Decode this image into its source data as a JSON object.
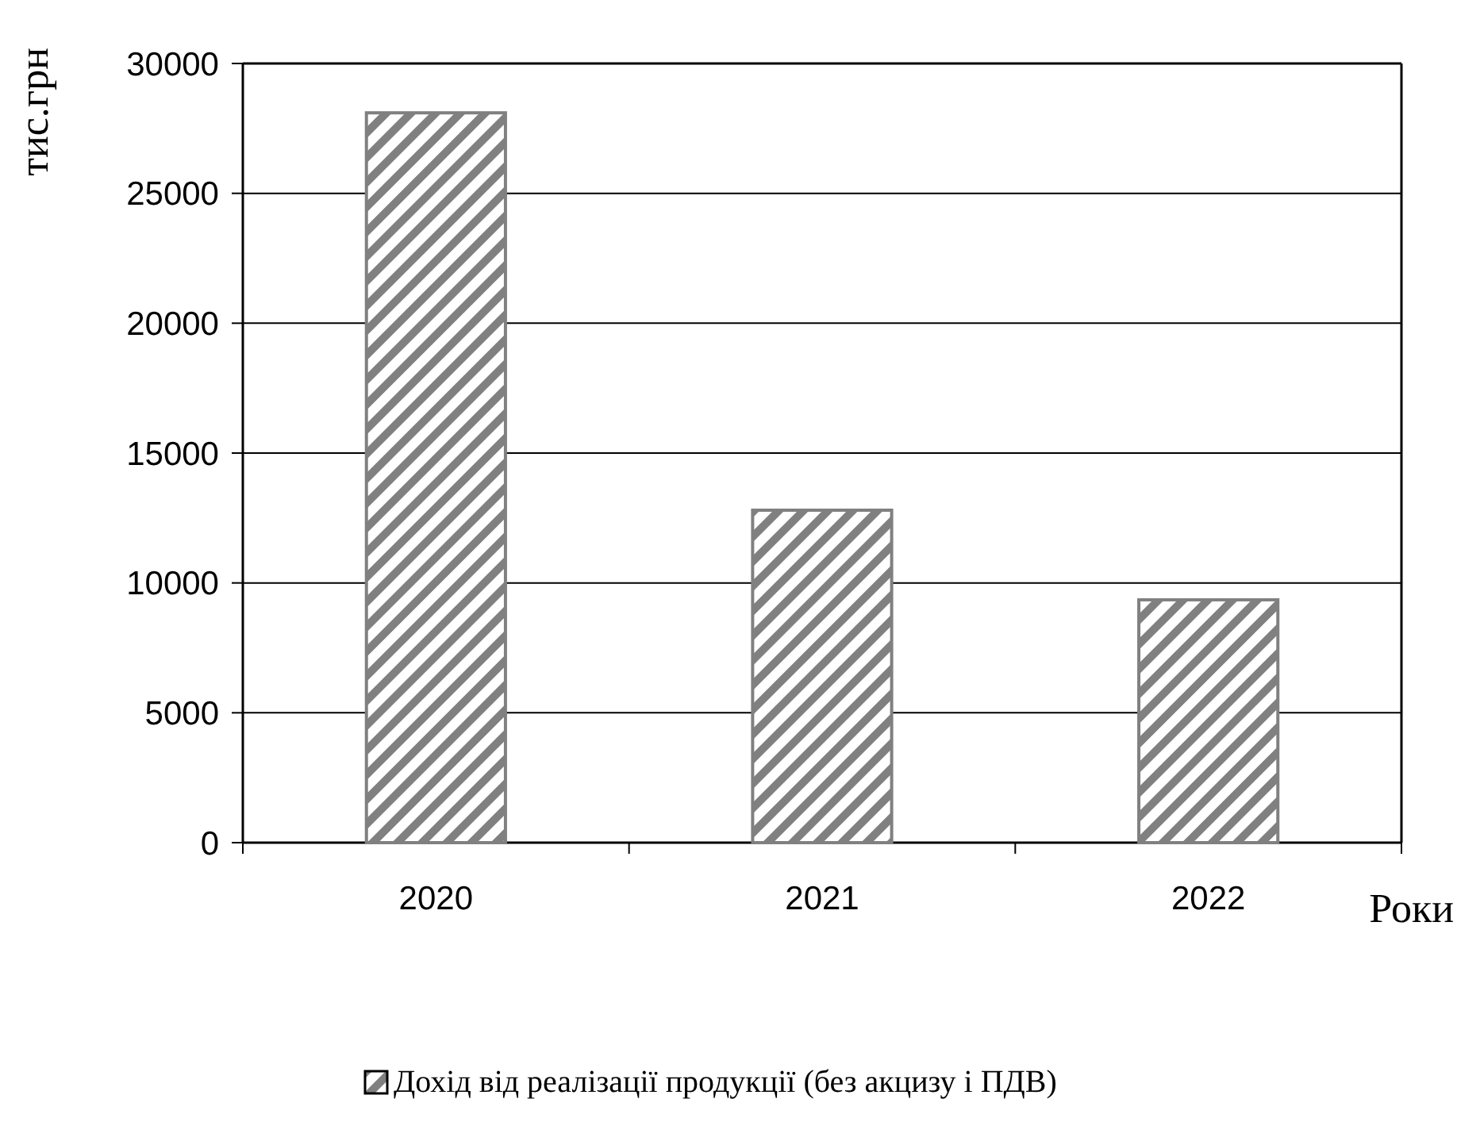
{
  "chart_data": {
    "type": "bar",
    "ylabel": "тис.грн",
    "xlabel": "Роки",
    "categories": [
      "2020",
      "2021",
      "2022"
    ],
    "series": [
      {
        "name": "Дохід від реалізації продукції (без акцизу і ПДВ)",
        "color": "#808080",
        "values": [
          28100,
          12800,
          9350
        ]
      }
    ],
    "ylim": [
      0,
      30000
    ],
    "yticks": [
      0,
      5000,
      10000,
      15000,
      20000,
      25000,
      30000
    ],
    "grid": "y",
    "legend": "bottom"
  }
}
